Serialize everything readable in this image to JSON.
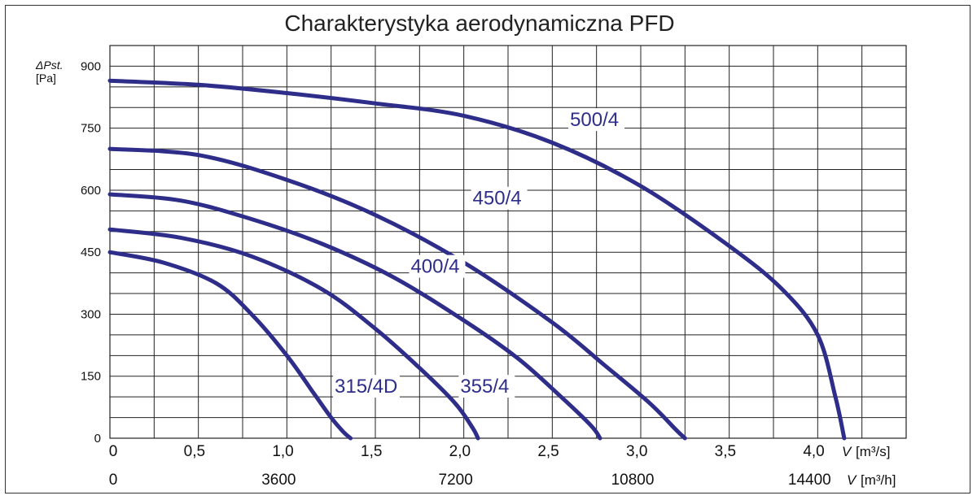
{
  "chart_data": {
    "type": "line",
    "title": "Charakterystyka aerodynamiczna PFD",
    "ylabel_symbol": "ΔPst.",
    "ylabel_unit": "[Pa]",
    "xlabel_symbol": "V",
    "xlabel_unit": "[m³/s]",
    "x2label_symbol": "V",
    "x2label_unit": "[m³/h]",
    "xlim": [
      0,
      4.5
    ],
    "ylim": [
      0,
      950
    ],
    "grid": true,
    "y_ticks": [
      "0",
      "150",
      "300",
      "450",
      "600",
      "750",
      "900"
    ],
    "x_ticks": [
      "0",
      "0,5",
      "1,0",
      "1,5",
      "2,0",
      "2,5",
      "3,0",
      "3,5",
      "4,0"
    ],
    "x2_ticks": [
      "0",
      "3600",
      "7200",
      "10800",
      "14400"
    ],
    "colors": {
      "series": "#2e2e8a",
      "grid": "#222222"
    },
    "series": [
      {
        "name": "315/4D",
        "x": [
          0,
          0.3,
          0.6,
          0.8,
          1.0,
          1.15,
          1.25,
          1.32,
          1.36
        ],
        "y": [
          450,
          425,
          375,
          300,
          200,
          110,
          50,
          15,
          0
        ]
      },
      {
        "name": "355/4",
        "x": [
          0,
          0.4,
          0.8,
          1.2,
          1.5,
          1.75,
          1.95,
          2.05,
          2.08
        ],
        "y": [
          505,
          485,
          440,
          360,
          265,
          170,
          85,
          25,
          0
        ]
      },
      {
        "name": "400/4",
        "x": [
          0,
          0.4,
          0.8,
          1.2,
          1.6,
          2.0,
          2.3,
          2.55,
          2.72,
          2.77
        ],
        "y": [
          590,
          575,
          530,
          470,
          390,
          285,
          195,
          100,
          30,
          0
        ]
      },
      {
        "name": "450/4",
        "x": [
          0,
          0.5,
          1.0,
          1.5,
          2.0,
          2.5,
          2.8,
          3.05,
          3.2,
          3.25
        ],
        "y": [
          700,
          685,
          625,
          540,
          425,
          280,
          175,
          85,
          20,
          0
        ]
      },
      {
        "name": "500/4",
        "x": [
          0,
          0.5,
          1.0,
          1.5,
          2.0,
          2.5,
          3.0,
          3.5,
          3.8,
          4.0,
          4.1,
          4.15
        ],
        "y": [
          865,
          855,
          835,
          810,
          780,
          715,
          610,
          465,
          360,
          250,
          100,
          0
        ]
      }
    ]
  }
}
